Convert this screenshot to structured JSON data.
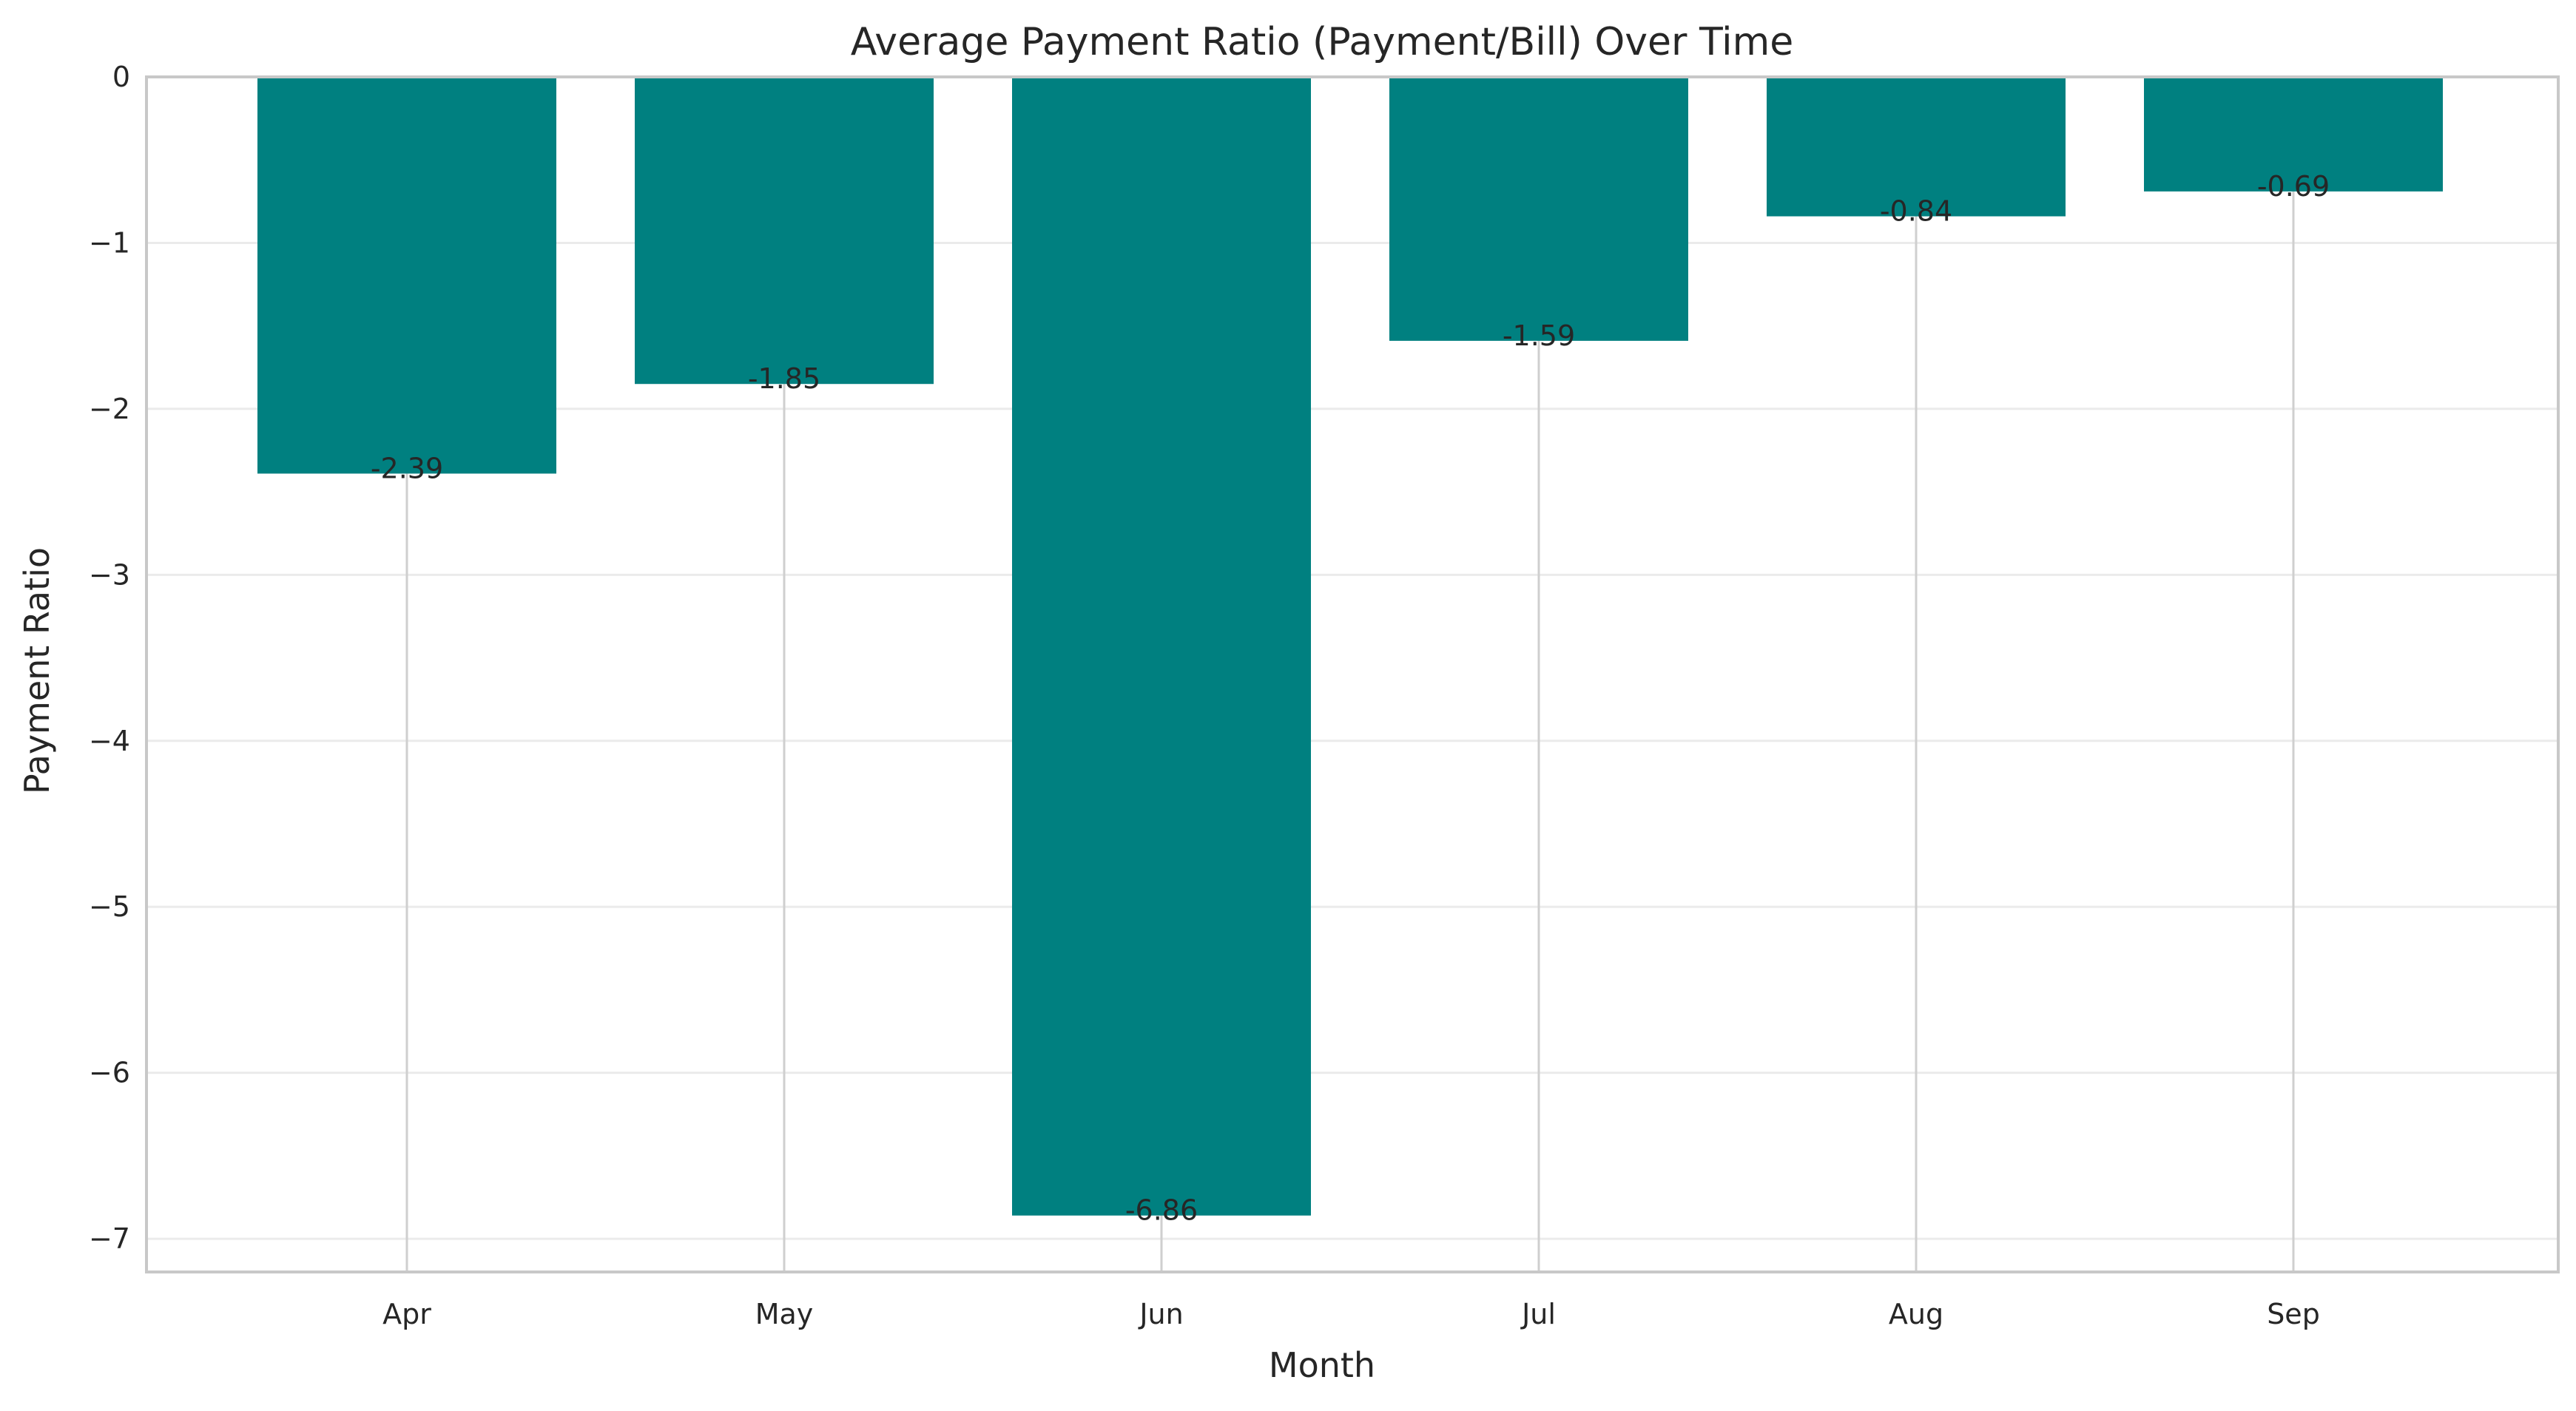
{
  "chart_data": {
    "type": "bar",
    "title": "Average Payment Ratio (Payment/Bill) Over Time",
    "xlabel": "Month",
    "ylabel": "Payment Ratio",
    "categories": [
      "Apr",
      "May",
      "Jun",
      "Jul",
      "Aug",
      "Sep"
    ],
    "values": [
      -2.39,
      -1.85,
      -6.86,
      -1.59,
      -0.84,
      -0.69
    ],
    "data_labels": [
      "-2.39",
      "-1.85",
      "-6.86",
      "-1.59",
      "-0.84",
      "-0.69"
    ],
    "ylim": [
      -7.2,
      0
    ],
    "yticks": [
      0,
      -1,
      -2,
      -3,
      -4,
      -5,
      -6,
      -7
    ],
    "ytick_labels": [
      "0",
      "−1",
      "−2",
      "−3",
      "−4",
      "−5",
      "−6",
      "−7"
    ],
    "grid": true,
    "bar_color": "#008080"
  }
}
